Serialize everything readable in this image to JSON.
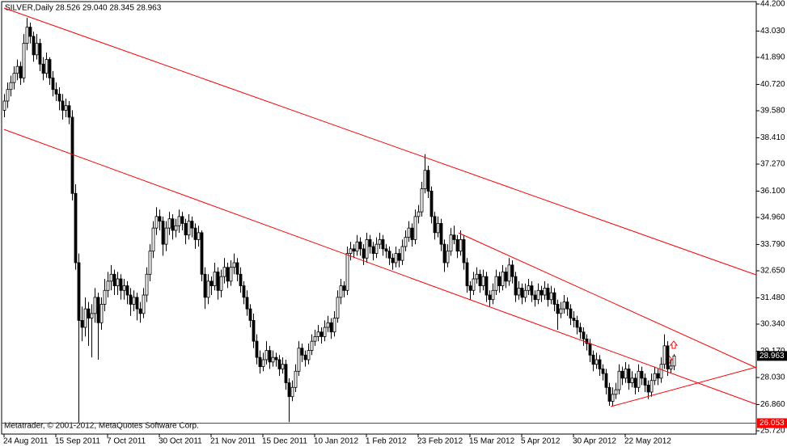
{
  "chart_data": {
    "type": "candlestick",
    "header": "SILVER,Daily  28.526 29.040 28.345 28.963",
    "footer": "Metatrader, © 2001-2012, MetaQuotes Software Corp.",
    "bull_color": "#ffffff",
    "bear_color": "#000000",
    "wick_color": "#000000",
    "ylim": [
      25.58,
      44.305
    ],
    "xlim": [
      -0.75,
      232.5
    ],
    "yticks": [
      {
        "value": 44.2,
        "label": "44.200"
      },
      {
        "value": 43.03,
        "label": "43.030"
      },
      {
        "value": 41.89,
        "label": "41.890"
      },
      {
        "value": 40.72,
        "label": "40.720"
      },
      {
        "value": 39.58,
        "label": "39.580"
      },
      {
        "value": 38.41,
        "label": "38.410"
      },
      {
        "value": 37.27,
        "label": "37.270"
      },
      {
        "value": 36.1,
        "label": "36.100"
      },
      {
        "value": 34.96,
        "label": "34.960"
      },
      {
        "value": 33.79,
        "label": "33.790"
      },
      {
        "value": 32.65,
        "label": "32.650"
      },
      {
        "value": 31.48,
        "label": "31.480"
      },
      {
        "value": 30.34,
        "label": "30.340"
      },
      {
        "value": 29.17,
        "label": "29.170"
      },
      {
        "value": 28.03,
        "label": "28.030"
      },
      {
        "value": 26.86,
        "label": "26.860"
      },
      {
        "value": 25.72,
        "label": "25.720"
      }
    ],
    "xticks": [
      {
        "value": 0,
        "label": "24 Aug 2011"
      },
      {
        "value": 16,
        "label": "15 Sep 2011"
      },
      {
        "value": 32,
        "label": "7 Oct 2011"
      },
      {
        "value": 48,
        "label": "30 Oct 2011"
      },
      {
        "value": 64,
        "label": "21 Nov 2011"
      },
      {
        "value": 80,
        "label": "15 Dec 2011"
      },
      {
        "value": 96,
        "label": "10 Jan 2012"
      },
      {
        "value": 112,
        "label": "1 Feb 2012"
      },
      {
        "value": 128,
        "label": "23 Feb 2012"
      },
      {
        "value": 144,
        "label": "15 Mar 2012"
      },
      {
        "value": 160,
        "label": "5 Apr 2012"
      },
      {
        "value": 176,
        "label": "30 Apr 2012"
      },
      {
        "value": 192,
        "label": "22 May 2012"
      }
    ],
    "last_price": 28.963,
    "level": 26.053,
    "level_color": "#ff0000",
    "trendlines": [
      {
        "color": "#ff0000",
        "x": [
          0,
          232.5
        ],
        "y": [
          44.03,
          32.47
        ]
      },
      {
        "color": "#ff0000",
        "x": [
          0,
          232.5
        ],
        "y": [
          38.77,
          26.87
        ]
      },
      {
        "color": "#ff0000",
        "x": [
          140.5,
          232.5
        ],
        "y": [
          34.29,
          28.45
        ]
      },
      {
        "color": "#ff0000",
        "x": [
          187.5,
          232.5
        ],
        "y": [
          26.77,
          28.48
        ]
      }
    ],
    "ohlc": [
      [
        39.6,
        40.3,
        39.3,
        40.0
      ],
      [
        40.0,
        40.8,
        39.7,
        40.5
      ],
      [
        40.5,
        41.1,
        40.2,
        40.8
      ],
      [
        40.8,
        41.5,
        40.5,
        41.2
      ],
      [
        41.2,
        41.8,
        40.9,
        41.5
      ],
      [
        41.5,
        41.7,
        40.7,
        41.0
      ],
      [
        41.0,
        42.9,
        40.8,
        42.5
      ],
      [
        42.5,
        43.6,
        42.2,
        43.2
      ],
      [
        43.2,
        43.4,
        42.5,
        42.8
      ],
      [
        42.8,
        43.0,
        41.7,
        42.0
      ],
      [
        42.0,
        42.9,
        41.8,
        42.5
      ],
      [
        42.5,
        42.7,
        41.3,
        41.6
      ],
      [
        41.6,
        41.9,
        40.9,
        41.2
      ],
      [
        41.2,
        42.1,
        41.0,
        41.8
      ],
      [
        41.8,
        41.9,
        40.7,
        41.0
      ],
      [
        41.0,
        41.3,
        40.2,
        40.5
      ],
      [
        40.5,
        40.8,
        40.0,
        40.3
      ],
      [
        40.3,
        40.6,
        39.6,
        40.0
      ],
      [
        40.0,
        40.3,
        39.2,
        39.6
      ],
      [
        39.6,
        40.1,
        39.3,
        39.8
      ],
      [
        39.8,
        40.0,
        39.0,
        39.3
      ],
      [
        39.3,
        39.6,
        35.7,
        36.0
      ],
      [
        36.0,
        36.4,
        32.7,
        33.0
      ],
      [
        33.0,
        33.4,
        26.1,
        30.5
      ],
      [
        30.5,
        31.1,
        29.6,
        30.2
      ],
      [
        30.2,
        31.5,
        29.8,
        31.0
      ],
      [
        31.0,
        31.3,
        29.4,
        30.6
      ],
      [
        30.6,
        31.2,
        28.9,
        30.8
      ],
      [
        30.8,
        31.9,
        30.4,
        31.5
      ],
      [
        31.5,
        31.7,
        28.8,
        30.4
      ],
      [
        30.4,
        31.5,
        30.1,
        31.2
      ],
      [
        31.2,
        32.3,
        30.9,
        31.8
      ],
      [
        31.8,
        32.6,
        31.5,
        32.2
      ],
      [
        32.2,
        32.9,
        31.8,
        32.5
      ],
      [
        32.5,
        32.7,
        31.6,
        32.0
      ],
      [
        32.0,
        32.6,
        31.6,
        32.3
      ],
      [
        32.3,
        32.5,
        31.4,
        31.8
      ],
      [
        31.8,
        32.3,
        31.4,
        32.0
      ],
      [
        32.0,
        32.2,
        31.2,
        31.6
      ],
      [
        31.6,
        31.9,
        30.7,
        31.2
      ],
      [
        31.2,
        31.8,
        30.9,
        31.5
      ],
      [
        31.5,
        31.7,
        30.5,
        31.0
      ],
      [
        31.0,
        31.3,
        30.4,
        30.8
      ],
      [
        30.8,
        31.9,
        30.6,
        31.6
      ],
      [
        31.6,
        32.8,
        31.3,
        32.5
      ],
      [
        32.5,
        33.8,
        32.2,
        33.5
      ],
      [
        33.5,
        34.8,
        33.2,
        34.5
      ],
      [
        34.5,
        35.4,
        34.2,
        35.0
      ],
      [
        35.0,
        35.3,
        34.4,
        34.8
      ],
      [
        34.8,
        35.0,
        33.3,
        33.8
      ],
      [
        33.8,
        34.8,
        33.5,
        34.5
      ],
      [
        34.5,
        35.2,
        34.2,
        34.9
      ],
      [
        34.9,
        35.1,
        34.0,
        34.4
      ],
      [
        34.4,
        34.9,
        34.1,
        34.6
      ],
      [
        34.6,
        35.3,
        34.3,
        35.0
      ],
      [
        35.0,
        35.2,
        34.4,
        34.7
      ],
      [
        34.7,
        34.9,
        33.8,
        34.2
      ],
      [
        34.2,
        35.1,
        34.0,
        34.8
      ],
      [
        34.8,
        35.0,
        34.1,
        34.5
      ],
      [
        34.5,
        34.7,
        33.6,
        34.0
      ],
      [
        34.0,
        34.6,
        33.7,
        34.3
      ],
      [
        34.3,
        34.4,
        32.2,
        32.5
      ],
      [
        32.5,
        32.8,
        31.0,
        31.5
      ],
      [
        31.5,
        32.5,
        31.2,
        32.2
      ],
      [
        32.2,
        32.4,
        31.6,
        32.0
      ],
      [
        32.0,
        33.0,
        31.8,
        32.6
      ],
      [
        32.6,
        32.8,
        31.4,
        31.8
      ],
      [
        31.8,
        32.7,
        31.5,
        32.4
      ],
      [
        32.4,
        33.2,
        32.1,
        32.8
      ],
      [
        32.8,
        33.0,
        31.9,
        32.2
      ],
      [
        32.2,
        33.1,
        32.0,
        32.8
      ],
      [
        32.8,
        33.4,
        32.5,
        33.0
      ],
      [
        33.0,
        33.2,
        32.2,
        32.5
      ],
      [
        32.5,
        32.8,
        31.7,
        32.0
      ],
      [
        32.0,
        32.2,
        31.2,
        31.5
      ],
      [
        31.5,
        31.8,
        30.7,
        31.0
      ],
      [
        31.0,
        31.2,
        30.2,
        30.5
      ],
      [
        30.5,
        30.8,
        29.3,
        29.6
      ],
      [
        29.6,
        29.9,
        28.6,
        28.9
      ],
      [
        28.9,
        29.2,
        28.2,
        28.5
      ],
      [
        28.5,
        29.1,
        28.3,
        28.8
      ],
      [
        28.8,
        29.6,
        28.6,
        29.2
      ],
      [
        29.2,
        29.4,
        28.4,
        28.7
      ],
      [
        28.7,
        29.2,
        28.5,
        28.9
      ],
      [
        28.9,
        29.1,
        28.5,
        28.8
      ],
      [
        28.8,
        29.0,
        28.1,
        28.4
      ],
      [
        28.4,
        28.9,
        28.2,
        28.6
      ],
      [
        28.6,
        28.8,
        27.5,
        27.8
      ],
      [
        27.8,
        28.0,
        26.1,
        27.2
      ],
      [
        27.2,
        27.9,
        27.0,
        27.6
      ],
      [
        27.6,
        28.6,
        27.4,
        28.3
      ],
      [
        28.3,
        29.6,
        28.1,
        29.3
      ],
      [
        29.3,
        29.5,
        28.7,
        29.0
      ],
      [
        29.0,
        29.2,
        28.5,
        28.8
      ],
      [
        28.8,
        29.5,
        28.6,
        29.2
      ],
      [
        29.2,
        29.9,
        29.0,
        29.6
      ],
      [
        29.6,
        30.1,
        29.4,
        29.8
      ],
      [
        29.8,
        30.3,
        29.6,
        30.0
      ],
      [
        30.0,
        30.2,
        29.5,
        29.8
      ],
      [
        29.8,
        30.5,
        29.6,
        30.2
      ],
      [
        30.2,
        30.7,
        30.0,
        30.4
      ],
      [
        30.4,
        30.6,
        29.7,
        30.0
      ],
      [
        30.0,
        30.9,
        29.8,
        30.6
      ],
      [
        30.6,
        31.8,
        30.4,
        31.5
      ],
      [
        31.5,
        32.3,
        31.2,
        32.0
      ],
      [
        32.0,
        32.2,
        31.5,
        31.8
      ],
      [
        31.8,
        33.7,
        31.6,
        33.4
      ],
      [
        33.4,
        33.9,
        33.1,
        33.6
      ],
      [
        33.6,
        33.8,
        33.2,
        33.5
      ],
      [
        33.5,
        34.2,
        33.3,
        33.9
      ],
      [
        33.9,
        34.1,
        33.3,
        33.6
      ],
      [
        33.6,
        33.8,
        32.9,
        33.2
      ],
      [
        33.2,
        34.3,
        33.0,
        34.0
      ],
      [
        34.0,
        34.2,
        33.4,
        33.7
      ],
      [
        33.7,
        33.9,
        33.1,
        33.4
      ],
      [
        33.4,
        34.1,
        33.2,
        33.8
      ],
      [
        33.8,
        34.3,
        33.6,
        34.0
      ],
      [
        34.0,
        34.2,
        33.3,
        33.6
      ],
      [
        33.6,
        33.8,
        33.2,
        33.5
      ],
      [
        33.5,
        33.7,
        32.9,
        33.2
      ],
      [
        33.2,
        33.4,
        32.7,
        33.0
      ],
      [
        33.0,
        33.7,
        32.8,
        33.4
      ],
      [
        33.4,
        33.6,
        32.8,
        33.1
      ],
      [
        33.1,
        34.0,
        32.9,
        33.7
      ],
      [
        33.7,
        34.4,
        33.5,
        34.1
      ],
      [
        34.1,
        34.8,
        33.9,
        34.5
      ],
      [
        34.5,
        34.7,
        33.7,
        34.0
      ],
      [
        34.0,
        35.3,
        33.8,
        35.0
      ],
      [
        35.0,
        35.5,
        34.7,
        35.2
      ],
      [
        35.2,
        36.5,
        35.0,
        36.2
      ],
      [
        36.2,
        37.7,
        36.0,
        37.0
      ],
      [
        37.0,
        37.2,
        35.8,
        36.1
      ],
      [
        36.1,
        36.3,
        34.7,
        35.0
      ],
      [
        35.0,
        35.2,
        34.0,
        34.3
      ],
      [
        34.3,
        35.0,
        34.1,
        34.7
      ],
      [
        34.7,
        34.9,
        33.5,
        33.8
      ],
      [
        33.8,
        34.0,
        32.6,
        33.0
      ],
      [
        33.0,
        33.8,
        32.8,
        33.5
      ],
      [
        33.5,
        34.5,
        33.3,
        34.2
      ],
      [
        34.2,
        34.6,
        33.8,
        34.0
      ],
      [
        34.0,
        34.2,
        33.2,
        33.5
      ],
      [
        33.5,
        34.4,
        33.3,
        34.0
      ],
      [
        34.0,
        34.2,
        32.7,
        33.0
      ],
      [
        33.0,
        33.2,
        31.7,
        32.0
      ],
      [
        32.0,
        32.2,
        31.4,
        31.8
      ],
      [
        31.8,
        32.6,
        31.6,
        32.3
      ],
      [
        32.3,
        32.8,
        32.1,
        32.5
      ],
      [
        32.5,
        32.7,
        31.7,
        32.0
      ],
      [
        32.0,
        32.7,
        31.8,
        32.4
      ],
      [
        32.4,
        32.6,
        31.3,
        31.6
      ],
      [
        31.6,
        31.8,
        31.1,
        31.4
      ],
      [
        31.4,
        32.1,
        31.2,
        31.8
      ],
      [
        31.8,
        32.7,
        31.6,
        32.4
      ],
      [
        32.4,
        32.6,
        31.7,
        32.0
      ],
      [
        32.0,
        32.9,
        31.8,
        32.6
      ],
      [
        32.6,
        32.8,
        31.9,
        32.2
      ],
      [
        32.2,
        33.2,
        32.0,
        32.9
      ],
      [
        32.9,
        33.1,
        32.1,
        32.4
      ],
      [
        32.4,
        32.6,
        31.3,
        31.6
      ],
      [
        31.6,
        32.2,
        31.4,
        31.9
      ],
      [
        31.9,
        32.1,
        31.2,
        31.5
      ],
      [
        31.5,
        32.1,
        31.3,
        31.8
      ],
      [
        31.8,
        32.3,
        31.6,
        32.0
      ],
      [
        32.0,
        32.2,
        31.3,
        31.6
      ],
      [
        31.6,
        31.8,
        31.1,
        31.4
      ],
      [
        31.4,
        32.1,
        31.2,
        31.8
      ],
      [
        31.8,
        32.0,
        31.3,
        31.6
      ],
      [
        31.6,
        32.2,
        31.4,
        31.9
      ],
      [
        31.9,
        32.1,
        31.1,
        31.4
      ],
      [
        31.4,
        32.0,
        31.2,
        31.7
      ],
      [
        31.7,
        31.9,
        30.9,
        31.2
      ],
      [
        31.2,
        31.4,
        30.1,
        30.8
      ],
      [
        30.8,
        31.3,
        30.6,
        31.0
      ],
      [
        31.0,
        31.6,
        30.8,
        31.3
      ],
      [
        31.3,
        31.5,
        30.7,
        31.0
      ],
      [
        31.0,
        31.2,
        30.3,
        30.6
      ],
      [
        30.6,
        30.9,
        30.2,
        30.5
      ],
      [
        30.5,
        30.7,
        29.9,
        30.2
      ],
      [
        30.2,
        30.4,
        29.7,
        30.0
      ],
      [
        30.0,
        30.2,
        29.4,
        29.7
      ],
      [
        29.7,
        29.9,
        29.2,
        29.5
      ],
      [
        29.5,
        29.7,
        28.7,
        29.0
      ],
      [
        29.0,
        29.2,
        28.3,
        28.6
      ],
      [
        28.6,
        29.1,
        28.4,
        28.8
      ],
      [
        28.8,
        29.0,
        28.1,
        28.4
      ],
      [
        28.4,
        28.6,
        27.9,
        28.2
      ],
      [
        28.2,
        28.4,
        27.3,
        27.6
      ],
      [
        27.6,
        27.8,
        26.8,
        27.0
      ],
      [
        27.0,
        27.6,
        26.8,
        27.3
      ],
      [
        27.3,
        27.8,
        27.1,
        27.5
      ],
      [
        27.5,
        28.6,
        27.3,
        28.3
      ],
      [
        28.3,
        28.5,
        27.7,
        28.0
      ],
      [
        28.0,
        28.7,
        27.8,
        28.4
      ],
      [
        28.4,
        28.6,
        27.5,
        27.8
      ],
      [
        27.8,
        28.3,
        27.6,
        28.0
      ],
      [
        28.0,
        28.2,
        27.3,
        27.6
      ],
      [
        27.6,
        28.6,
        27.4,
        28.3
      ],
      [
        28.3,
        28.5,
        27.7,
        28.0
      ],
      [
        28.0,
        28.2,
        27.4,
        27.7
      ],
      [
        27.7,
        27.9,
        27.1,
        27.4
      ],
      [
        27.4,
        28.2,
        27.2,
        27.9
      ],
      [
        27.9,
        28.5,
        27.7,
        28.2
      ],
      [
        28.2,
        28.4,
        27.7,
        28.0
      ],
      [
        28.0,
        28.9,
        27.8,
        28.6
      ],
      [
        28.6,
        29.9,
        28.4,
        29.4
      ],
      [
        29.4,
        29.6,
        28.1,
        28.4
      ],
      [
        28.4,
        28.8,
        28.2,
        28.526
      ],
      [
        28.526,
        29.04,
        28.345,
        28.963
      ]
    ]
  }
}
